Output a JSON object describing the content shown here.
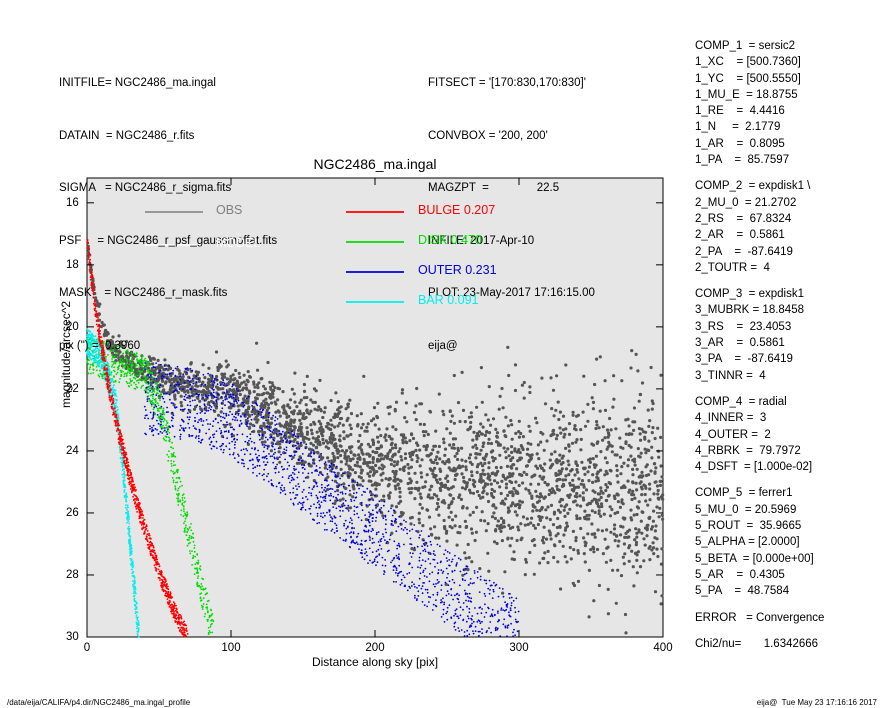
{
  "header_left": [
    "INITFILE= NGC2486_ma.ingal",
    "DATAIN  = NGC2486_r.fits",
    "SIGMA   = NGC2486_r_sigma.fits",
    "PSF     = NGC2486_r_psf_gaussmoffat.fits",
    "MASK    = NGC2486_r_mask.fits",
    "pix (\") =  0.3960"
  ],
  "header_mid": [
    "FITSECT = '[170:830,170:830]'",
    "CONVBOX = '200, 200'",
    "MAGZPT  =               22.5",
    "INFILE: 2017-Apr-10",
    "PLOT: 23-May-2017 17:16:15.00",
    "eija@"
  ],
  "params": [
    [
      "COMP_1  = sersic2",
      "1_XC    = [500.7360]",
      "1_YC    = [500.5550]",
      "1_MU_E  = 18.8755",
      "1_RE    =  4.4416",
      "1_N     =  2.1779",
      "1_AR    =  0.8095",
      "1_PA    =  85.7597"
    ],
    [
      "COMP_2  = expdisk1 \\",
      "2_MU_0  = 21.2702",
      "2_RS    =  67.8324",
      "2_AR    =  0.5861",
      "2_PA    =  -87.6419",
      "2_TOUTR =  4"
    ],
    [
      "COMP_3  = expdisk1",
      "3_MUBRK = 18.8458",
      "3_RS    =  23.4053",
      "3_AR    =  0.5861",
      "3_PA    =  -87.6419",
      "3_TINNR =  4"
    ],
    [
      "COMP_4  = radial",
      "4_INNER =  3",
      "4_OUTER =  2",
      "4_RBRK  =  79.7972",
      "4_DSFT  = [1.000e-02]"
    ],
    [
      "COMP_5  = ferrer1",
      "5_MU_0  = 20.5969",
      "5_ROUT  =  35.9665",
      "5_ALPHA = [2.0000]",
      "5_BETA  = [0.000e+00]",
      "5_AR    =  0.4305",
      "5_PA    =  48.7584"
    ],
    [
      "ERROR   = Convergence"
    ]
  ],
  "chi2": "Chi2/nu=       1.6342666",
  "footer_left": "/data/eija/CALIFA/p4.dir/NGC2486_ma.ingal_profile",
  "footer_right": "eija@  Tue May 23 17:16:16 2017",
  "chart_data": {
    "type": "scatter",
    "title": "NGC2486_ma.ingal",
    "xlabel": "Distance along sky [pix]",
    "ylabel": "magnitude/arcsec^2",
    "xlim": [
      0,
      400
    ],
    "ylim": [
      30,
      15.2
    ],
    "y_inverted": true,
    "xticks": [
      "0",
      "100",
      "200",
      "300",
      "400"
    ],
    "yticks": [
      "16",
      "18",
      "20",
      "22",
      "24",
      "26",
      "28",
      "30"
    ],
    "background": "#e6e6e6",
    "legend": [
      {
        "name": "OBS",
        "value": "",
        "color": "#7f7f7f"
      },
      {
        "name": "MODEL",
        "value": "",
        "color": "#ffffff"
      },
      {
        "name": "BULGE",
        "value": "0.207",
        "color": "#ff0000"
      },
      {
        "name": "DISK",
        "value": "0.470",
        "color": "#00dd00"
      },
      {
        "name": "OUTER",
        "value": "0.231",
        "color": "#0000dd"
      },
      {
        "name": "BAR",
        "value": "0.091",
        "color": "#00eeee"
      }
    ],
    "series": [
      {
        "name": "OBS",
        "color": "#555555",
        "x": [
          0,
          2,
          5,
          10,
          15,
          20,
          30,
          40,
          50,
          60,
          70,
          80,
          90,
          100,
          120,
          140,
          160,
          180,
          200,
          250,
          300,
          350,
          400
        ],
        "y": [
          17.0,
          17.9,
          18.9,
          19.9,
          20.5,
          20.8,
          21.1,
          21.4,
          21.6,
          21.8,
          21.9,
          22.0,
          22.0,
          22.1,
          22.5,
          23.0,
          23.5,
          24.0,
          24.4,
          24.8,
          25.0,
          25.1,
          25.2
        ]
      },
      {
        "name": "BULGE",
        "color": "#ff0000",
        "x": [
          0,
          1,
          3,
          5,
          10,
          15,
          20,
          30,
          40,
          50,
          60,
          70
        ],
        "y": [
          17.0,
          17.6,
          18.4,
          19.1,
          20.6,
          21.9,
          23.0,
          24.9,
          26.5,
          27.9,
          29.1,
          30.0
        ]
      },
      {
        "name": "DISK",
        "color": "#00dd00",
        "x": [
          0,
          20,
          40,
          50,
          60,
          70,
          80,
          88
        ],
        "y": [
          20.9,
          21.2,
          21.5,
          22.5,
          24.5,
          26.5,
          28.5,
          30.0
        ]
      },
      {
        "name": "OUTER",
        "color": "#0000dd",
        "x": [
          40,
          60,
          80,
          100,
          150,
          200,
          250,
          300
        ],
        "y": [
          22.3,
          22.4,
          22.6,
          23.0,
          24.8,
          26.6,
          28.4,
          30.0
        ]
      },
      {
        "name": "BAR",
        "color": "#00eeee",
        "x": [
          0,
          10,
          20,
          25,
          30,
          36
        ],
        "y": [
          20.5,
          20.9,
          22.5,
          24.5,
          27.0,
          30.0
        ]
      }
    ]
  }
}
